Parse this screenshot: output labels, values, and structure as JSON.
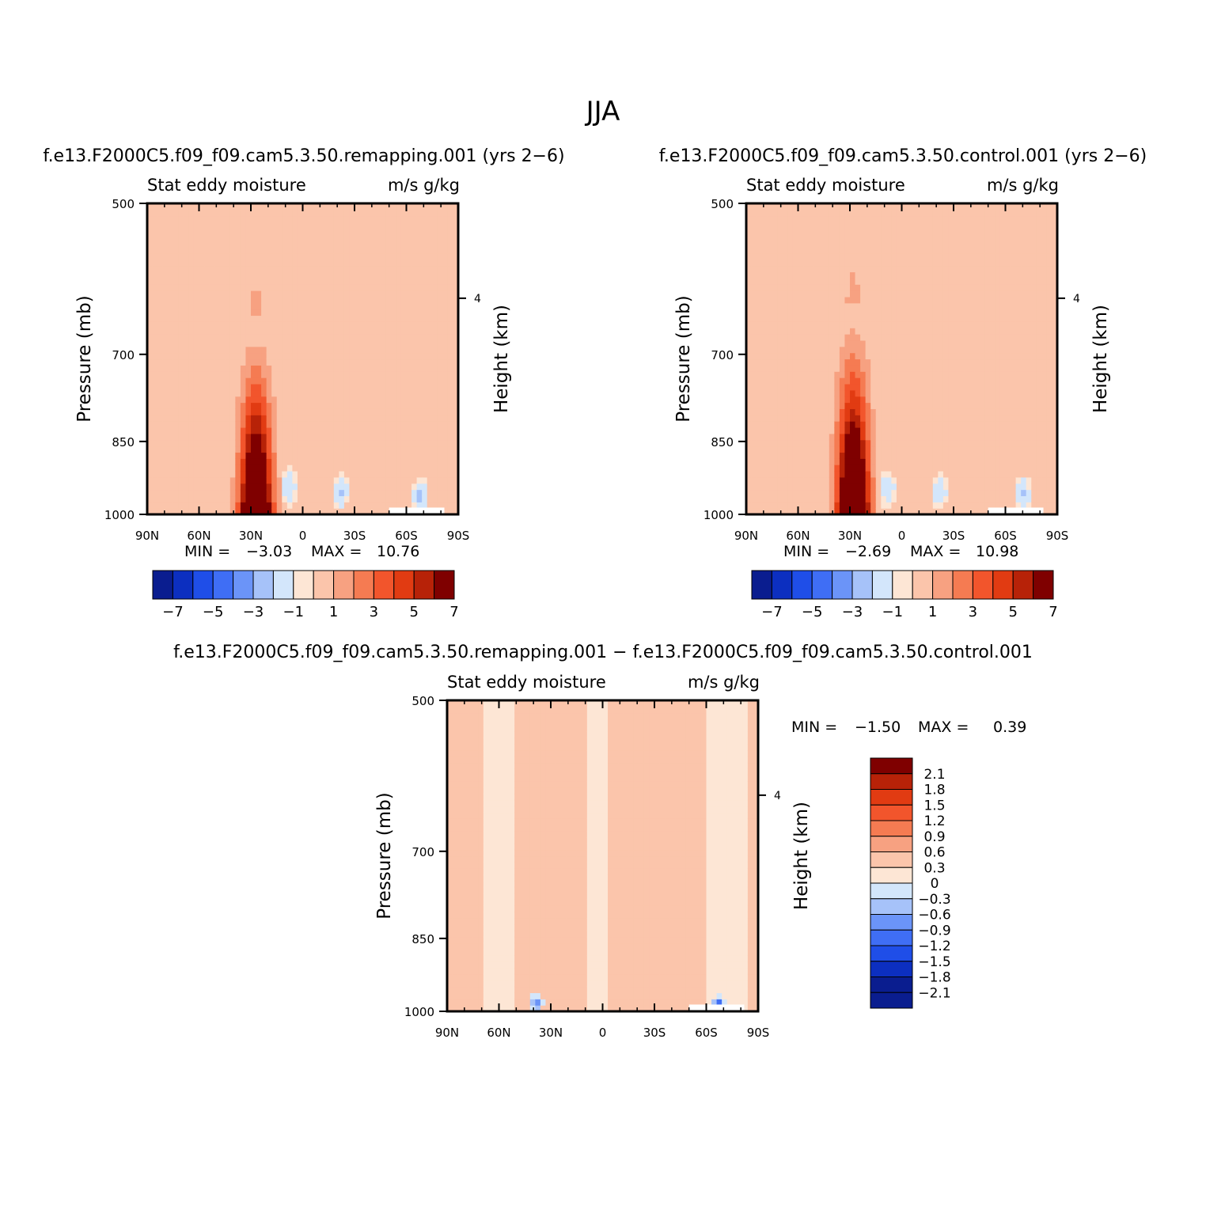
{
  "figure": {
    "title": "JJA"
  },
  "palette": {
    "neg": [
      "#0a1d8f",
      "#0c2fc0",
      "#1f4ee8",
      "#3f6ef5",
      "#6b94f8",
      "#a6c2f9",
      "#d3e6fb"
    ],
    "pos": [
      "#fde6d5",
      "#fbc5ab",
      "#f7a181",
      "#f57b52",
      "#f2552c",
      "#e13b12",
      "#b72208",
      "#7f0000"
    ],
    "missing": "#ffffff"
  },
  "chart_data": [
    {
      "type": "heatmap",
      "id": "remapping",
      "title": "f.e13.F2000C5.f09_f09.cam5.3.50.remapping.001 (yrs 2−6)",
      "left_title": "Stat eddy moisture",
      "right_title": "m/s g/kg",
      "ylabel": "Pressure (mb)",
      "ylabel_right": "Height (km)",
      "x_ticks": [
        "90N",
        "60N",
        "30N",
        "0",
        "30S",
        "60S",
        "90S"
      ],
      "x_range": [
        90,
        -90
      ],
      "y_ticks": [
        "500",
        "700",
        "850",
        "1000"
      ],
      "y_range": [
        1000,
        500
      ],
      "right_ticks": [
        "4"
      ],
      "min_label": "MIN =",
      "min_value": "−3.03",
      "max_label": "MAX =",
      "max_value": "10.76",
      "cbar_levels": [
        -7,
        -6,
        -5,
        -4,
        -3,
        -2,
        -1,
        0,
        1,
        2,
        3,
        4,
        5,
        6,
        7
      ],
      "cbar_labels": [
        "−7",
        "−5",
        "−3",
        "−1",
        "1",
        "3",
        "5",
        "7"
      ],
      "cbar_dir": "horizontal",
      "field": {
        "jet_center": 27,
        "jet_half_width": 9,
        "jet_peak": 13,
        "jet_bottom": 1000,
        "jet_top": 640,
        "pos_band": [
          [
            48,
            8,
            0.8
          ],
          [
            0,
            -25,
            0.5
          ]
        ],
        "neg_spots": [
          [
            8,
            940,
            1.5
          ],
          [
            -22,
            950,
            1.6
          ],
          [
            -68,
            960,
            2.2
          ]
        ],
        "missing_box": [
          -50,
          -82,
          985,
          1000
        ]
      }
    },
    {
      "type": "heatmap",
      "id": "control",
      "title": "f.e13.F2000C5.f09_f09.cam5.3.50.control.001 (yrs 2−6)",
      "left_title": "Stat eddy moisture",
      "right_title": "m/s g/kg",
      "ylabel": "Pressure (mb)",
      "ylabel_right": "Height (km)",
      "x_ticks": [
        "90N",
        "60N",
        "30N",
        "0",
        "30S",
        "60S",
        "90S"
      ],
      "x_range": [
        90,
        -90
      ],
      "y_ticks": [
        "500",
        "700",
        "850",
        "1000"
      ],
      "y_range": [
        1000,
        500
      ],
      "right_ticks": [
        "4"
      ],
      "min_label": "MIN =",
      "min_value": "−2.69",
      "max_label": "MAX =",
      "max_value": "10.98",
      "cbar_levels": [
        -7,
        -6,
        -5,
        -4,
        -3,
        -2,
        -1,
        0,
        1,
        2,
        3,
        4,
        5,
        6,
        7
      ],
      "cbar_labels": [
        "−7",
        "−5",
        "−3",
        "−1",
        "1",
        "3",
        "5",
        "7"
      ],
      "cbar_dir": "horizontal",
      "field": {
        "jet_center": 28,
        "jet_half_width": 9,
        "jet_peak": 13.5,
        "jet_bottom": 1000,
        "jet_top": 620,
        "pos_band": [
          [
            50,
            5,
            0.8
          ],
          [
            2,
            -20,
            0.5
          ]
        ],
        "neg_spots": [
          [
            8,
            945,
            1.4
          ],
          [
            -22,
            950,
            1.5
          ],
          [
            -70,
            955,
            1.8
          ]
        ],
        "missing_box": [
          -50,
          -82,
          985,
          1000
        ]
      }
    },
    {
      "type": "heatmap",
      "id": "difference",
      "title": "f.e13.F2000C5.f09_f09.cam5.3.50.remapping.001 − f.e13.F2000C5.f09_f09.cam5.3.50.control.001",
      "left_title": "Stat eddy moisture",
      "right_title": "m/s g/kg",
      "ylabel": "Pressure (mb)",
      "ylabel_right": "Height (km)",
      "x_ticks": [
        "90N",
        "60N",
        "30N",
        "0",
        "30S",
        "60S",
        "90S"
      ],
      "x_range": [
        90,
        -90
      ],
      "y_ticks": [
        "500",
        "700",
        "850",
        "1000"
      ],
      "y_range": [
        1000,
        500
      ],
      "right_ticks": [
        "4"
      ],
      "min_label": "MIN =",
      "min_value": "−1.50",
      "max_label": "MAX =",
      "max_value": "0.39",
      "cbar_levels": [
        -2.1,
        -1.8,
        -1.5,
        -1.2,
        -0.9,
        -0.6,
        -0.3,
        0,
        0.3,
        0.6,
        0.9,
        1.2,
        1.5,
        1.8,
        2.1
      ],
      "cbar_labels": [
        "2.1",
        "1.8",
        "1.5",
        "1.2",
        "0.9",
        "0.6",
        "0.3",
        "0",
        "−0.3",
        "−0.6",
        "−0.9",
        "−1.2",
        "−1.5",
        "−1.8",
        "−2.1"
      ],
      "cbar_dir": "vertical",
      "field": {
        "diff": true,
        "neg_strips": [
          [
            68,
            52
          ],
          [
            10,
            -2
          ],
          [
            -60,
            -85
          ]
        ],
        "neg_spots": [
          [
            38,
            980,
            1.0
          ],
          [
            -67,
            985,
            1.4
          ]
        ],
        "missing_box": [
          -50,
          -82,
          985,
          1000
        ]
      }
    }
  ]
}
